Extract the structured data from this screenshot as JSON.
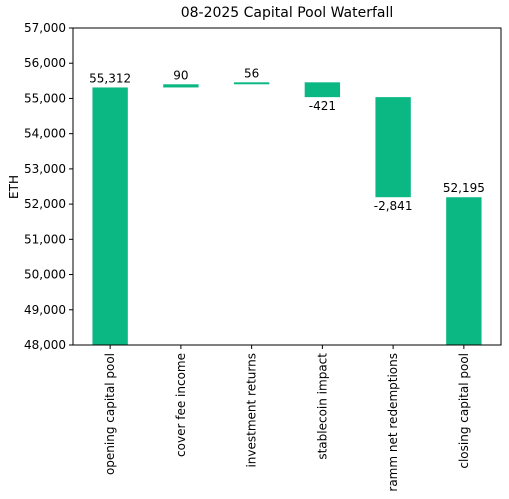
{
  "chart_data": {
    "type": "waterfall",
    "title": "08-2025 Capital Pool Waterfall",
    "y_label": "ETH",
    "categories": [
      "opening capital pool",
      "cover fee income",
      "investment returns",
      "stablecoin impact",
      "ramm net redemptions",
      "closing capital pool"
    ],
    "values": [
      55312,
      90,
      56,
      -421,
      -2841,
      52195
    ],
    "value_labels": [
      "55,312",
      "90",
      "56",
      "-421",
      "-2,841",
      "52,195"
    ],
    "color": "#0bb783",
    "ylim": [
      48000,
      57000
    ],
    "yticks": [
      {
        "value": 48000,
        "label": "48,000"
      },
      {
        "value": 49000,
        "label": "49,000"
      },
      {
        "value": 50000,
        "label": "50,000"
      },
      {
        "value": 51000,
        "label": "51,000"
      },
      {
        "value": 52000,
        "label": "52,000"
      },
      {
        "value": 53000,
        "label": "53,000"
      },
      {
        "value": 54000,
        "label": "54,000"
      },
      {
        "value": 55000,
        "label": "55,000"
      },
      {
        "value": 56000,
        "label": "56,000"
      },
      {
        "value": 57000,
        "label": "57,000"
      }
    ],
    "grid": false
  }
}
